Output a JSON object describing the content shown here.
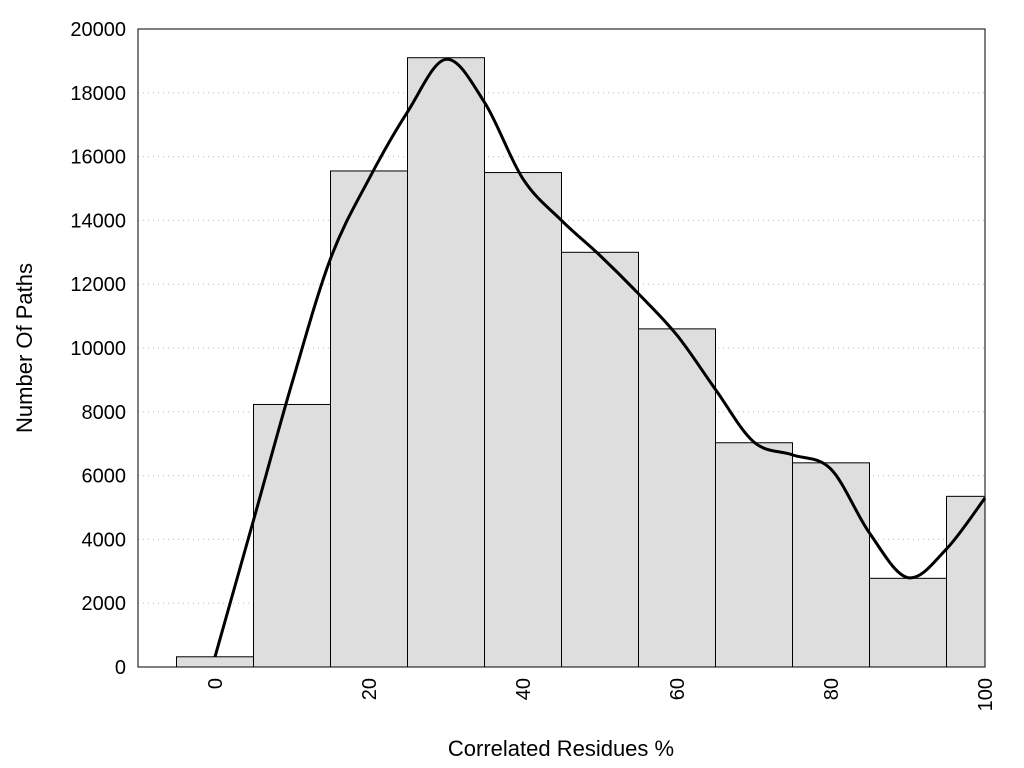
{
  "chart_data": {
    "type": "bar",
    "xlabel": "Correlated Residues %",
    "ylabel": "Number Of Paths",
    "xlim": [
      -10,
      100
    ],
    "ylim": [
      0,
      20000
    ],
    "xticks": [
      0,
      20,
      40,
      60,
      80,
      100
    ],
    "yticks": [
      0,
      2000,
      4000,
      6000,
      8000,
      10000,
      12000,
      14000,
      16000,
      18000,
      20000
    ],
    "grid": "horizontal-dotted",
    "legend": "none",
    "bin_width": 10,
    "bars": [
      {
        "center": 0,
        "value": 320
      },
      {
        "center": 10,
        "value": 8230
      },
      {
        "center": 20,
        "value": 15550
      },
      {
        "center": 30,
        "value": 19100
      },
      {
        "center": 40,
        "value": 15500
      },
      {
        "center": 50,
        "value": 13000
      },
      {
        "center": 60,
        "value": 10600
      },
      {
        "center": 70,
        "value": 7030
      },
      {
        "center": 80,
        "value": 6400
      },
      {
        "center": 90,
        "value": 2780
      },
      {
        "center": 100,
        "value": 5350
      }
    ],
    "curve": {
      "x": [
        0,
        5,
        10,
        15,
        20,
        25,
        30,
        35,
        40,
        45,
        50,
        55,
        60,
        65,
        70,
        75,
        80,
        85,
        90,
        95,
        100
      ],
      "y": [
        320,
        4600,
        8900,
        12800,
        15300,
        17400,
        19050,
        17700,
        15300,
        14000,
        12900,
        11700,
        10400,
        8700,
        7050,
        6650,
        6200,
        4200,
        2800,
        3700,
        5300
      ]
    },
    "bar_color": "#dedede",
    "line_color": "#000000"
  }
}
